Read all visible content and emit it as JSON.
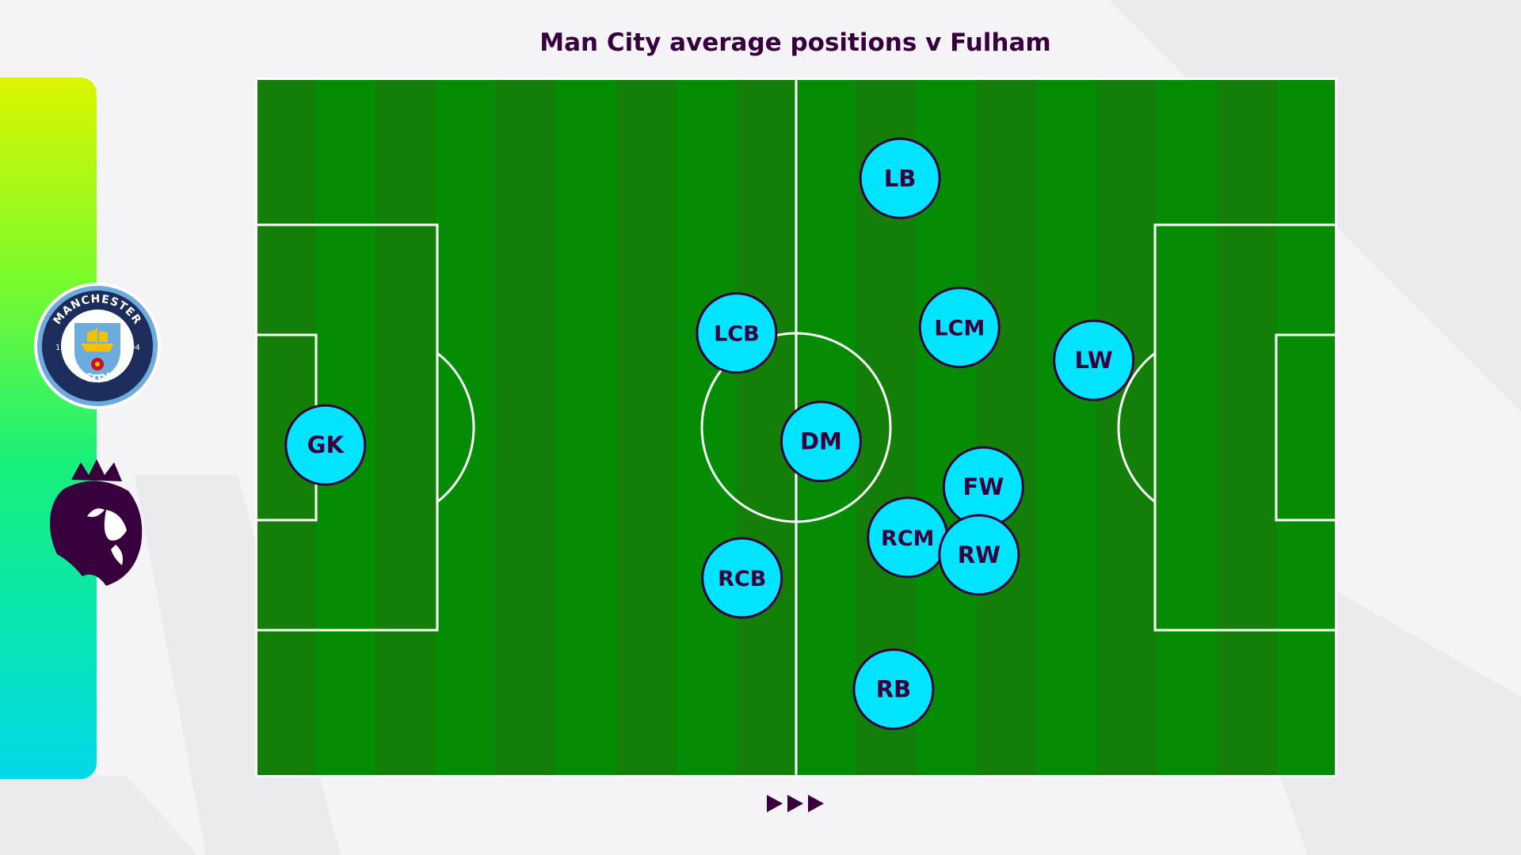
{
  "title": "Man City average positions v Fulham",
  "team_crest": {
    "icon": "man-city-crest-icon",
    "text_top": "MANCHESTER",
    "text_bottom": "CITY",
    "year_left": "18",
    "year_right": "94"
  },
  "league_logo": {
    "icon": "premier-league-lion-icon"
  },
  "colors": {
    "pitch_light": "#058c05",
    "pitch_dark": "#137f09",
    "lines": "#ffffff",
    "player_fill": "#00e5ff",
    "player_border": "#37003c",
    "text": "#37003c"
  },
  "chart_data": {
    "type": "scatter",
    "attacking_direction": "left-to-right",
    "pitch": {
      "length": 100,
      "width": 100
    },
    "players": [
      {
        "label": "GK",
        "x": 6.5,
        "y": 52.5
      },
      {
        "label": "LCB",
        "x": 44.5,
        "y": 36.5
      },
      {
        "label": "RCB",
        "x": 45.0,
        "y": 71.5
      },
      {
        "label": "DM",
        "x": 52.3,
        "y": 52.0
      },
      {
        "label": "LB",
        "x": 59.6,
        "y": 14.4
      },
      {
        "label": "LCM",
        "x": 65.1,
        "y": 35.7
      },
      {
        "label": "RCM",
        "x": 60.3,
        "y": 65.7
      },
      {
        "label": "FW",
        "x": 67.3,
        "y": 58.5
      },
      {
        "label": "RW",
        "x": 66.9,
        "y": 68.2
      },
      {
        "label": "LW",
        "x": 77.5,
        "y": 40.4
      },
      {
        "label": "RB",
        "x": 59.0,
        "y": 87.4
      }
    ]
  },
  "footer": {
    "icon": "triple-arrow-right-icon"
  }
}
